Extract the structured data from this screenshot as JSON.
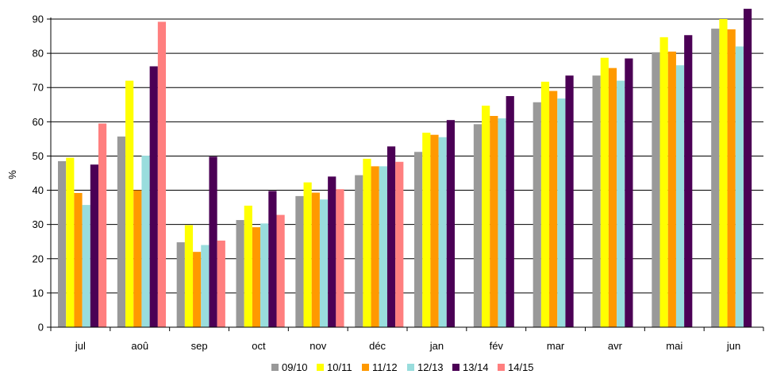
{
  "chart_data": {
    "type": "bar",
    "title": "",
    "xlabel": "",
    "ylabel": "%",
    "ylim": [
      0,
      90
    ],
    "yticks": [
      0,
      10,
      20,
      30,
      40,
      50,
      60,
      70,
      80,
      90
    ],
    "grid": true,
    "legend_position": "bottom",
    "categories": [
      "jul",
      "aoû",
      "sep",
      "oct",
      "nov",
      "déc",
      "jan",
      "fév",
      "mar",
      "avr",
      "mai",
      "jun"
    ],
    "series": [
      {
        "name": "09/10",
        "color": "#999999",
        "values": [
          48.5,
          55.7,
          24.8,
          31.3,
          38.3,
          44.4,
          51.2,
          59.3,
          65.7,
          73.5,
          80.3,
          87.2
        ]
      },
      {
        "name": "10/11",
        "color": "#FFFF00",
        "values": [
          49.5,
          72.0,
          29.8,
          35.5,
          42.3,
          49.2,
          56.8,
          64.7,
          71.7,
          78.7,
          84.7,
          90.0
        ]
      },
      {
        "name": "11/12",
        "color": "#FF9900",
        "values": [
          39.2,
          40.0,
          22.0,
          29.2,
          39.3,
          47.0,
          56.2,
          61.7,
          69.0,
          75.7,
          80.5,
          87.0
        ]
      },
      {
        "name": "12/13",
        "color": "#99DDDD",
        "values": [
          35.7,
          50.1,
          24.0,
          30.3,
          37.3,
          47.0,
          55.5,
          61.0,
          66.8,
          72.0,
          76.5,
          82.0
        ]
      },
      {
        "name": "13/14",
        "color": "#4B0055",
        "values": [
          47.5,
          76.2,
          49.8,
          39.8,
          44.0,
          52.8,
          60.5,
          67.5,
          73.5,
          78.5,
          85.3,
          93.0
        ]
      },
      {
        "name": "14/15",
        "color": "#FF7F7F",
        "values": [
          59.5,
          89.2,
          25.3,
          32.8,
          40.3,
          48.3,
          null,
          null,
          null,
          null,
          null,
          null
        ]
      }
    ]
  }
}
